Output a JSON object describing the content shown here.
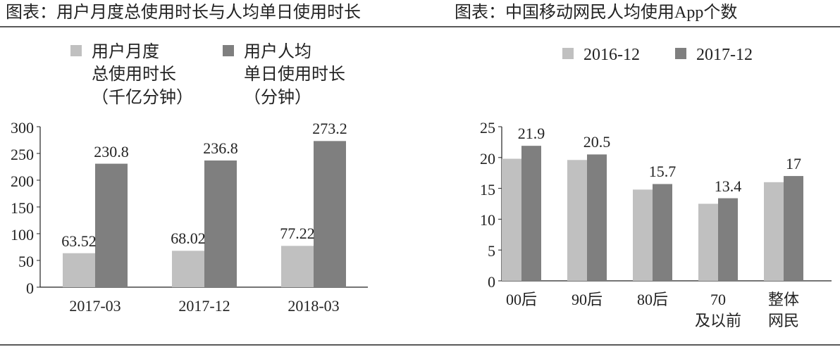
{
  "chart_data": [
    {
      "type": "bar",
      "title": "图表：用户月度总使用时长与人均单日使用时长",
      "categories": [
        "2017-03",
        "2017-12",
        "2018-03"
      ],
      "series": [
        {
          "name": "用户月度\n总使用时长\n（千亿分钟）",
          "color": "#c0c0c0",
          "values": [
            63.52,
            68.02,
            77.22
          ],
          "data_labels": true
        },
        {
          "name": "用户人均\n单日使用时长\n（分钟）",
          "color": "#7f7f7f",
          "values": [
            230.8,
            236.8,
            273.2
          ],
          "data_labels": true
        }
      ],
      "ylim": [
        0,
        300
      ],
      "yticks": [
        0,
        50,
        100,
        150,
        200,
        250,
        300
      ],
      "grid": false
    },
    {
      "type": "bar",
      "title": "图表：中国移动网民人均使用App个数",
      "categories": [
        "00后",
        "90后",
        "80后",
        "70\n及以前",
        "整体\n网民"
      ],
      "series": [
        {
          "name": "2016-12",
          "color": "#c0c0c0",
          "values": [
            19.8,
            19.6,
            14.8,
            12.5,
            16.0
          ],
          "data_labels": false
        },
        {
          "name": "2017-12",
          "color": "#7f7f7f",
          "values": [
            21.9,
            20.5,
            15.7,
            13.4,
            17
          ],
          "data_labels": true
        }
      ],
      "ylim": [
        0,
        25
      ],
      "yticks": [
        0,
        5,
        10,
        15,
        20,
        25
      ],
      "grid": false
    }
  ]
}
